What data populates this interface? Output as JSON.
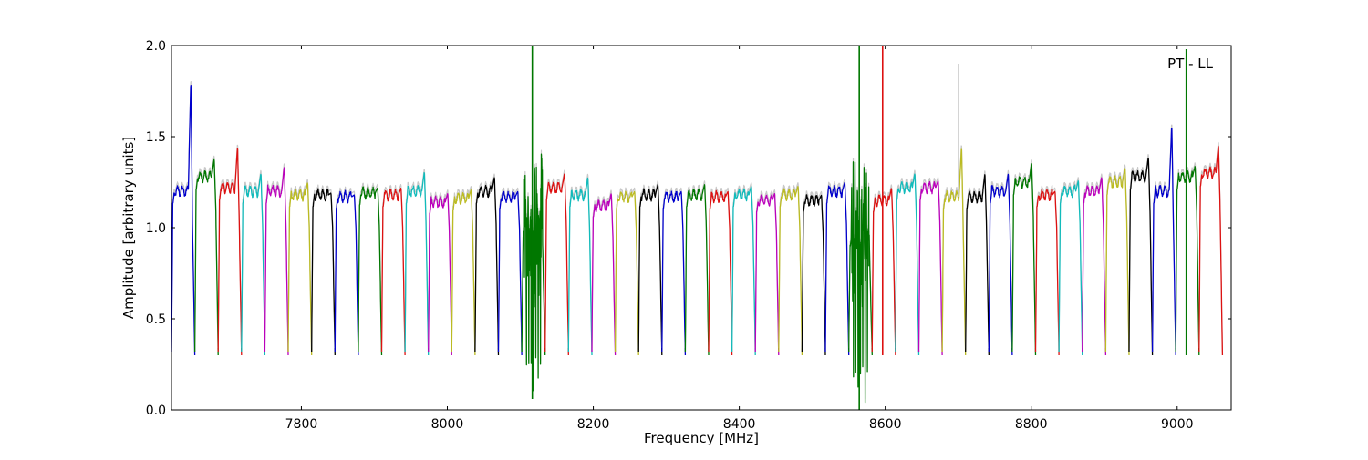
{
  "chart_data": {
    "type": "line",
    "title": "",
    "annotation": "PT - LL",
    "xlabel": "Frequency [MHz]",
    "ylabel": "Amplitude [arbitrary units]",
    "xlim": [
      7622,
      9074
    ],
    "ylim": [
      0.0,
      2.0
    ],
    "xticks": [
      7800,
      8000,
      8200,
      8400,
      8600,
      8800,
      9000
    ],
    "yticks": [
      0.0,
      0.5,
      1.0,
      1.5,
      2.0
    ],
    "xtick_labels": [
      "7800",
      "8000",
      "8200",
      "8400",
      "8600",
      "8800",
      "9000"
    ],
    "ytick_labels": [
      "0.0",
      "0.5",
      "1.0",
      "1.5",
      "2.0"
    ],
    "grid": false,
    "color_cycle": [
      "#0000cc",
      "#007700",
      "#dd1111",
      "#11bbbb",
      "#bb00bb",
      "#bbbb22",
      "#000000"
    ],
    "background_trace_color": "#c8c8c8",
    "channel_width_mhz": 32,
    "channels": [
      {
        "start": 7622,
        "level": 1.2,
        "edge_peak": 1.82
      },
      {
        "start": 7654,
        "level": 1.28,
        "edge_peak": 1.38
      },
      {
        "start": 7686,
        "level": 1.22,
        "edge_peak": 1.45
      },
      {
        "start": 7718,
        "level": 1.2,
        "edge_peak": 1.3
      },
      {
        "start": 7750,
        "level": 1.2,
        "edge_peak": 1.34
      },
      {
        "start": 7782,
        "level": 1.18,
        "edge_peak": 1.25
      },
      {
        "start": 7814,
        "level": 1.18,
        "edge_peak": 1.19
      },
      {
        "start": 7846,
        "level": 1.17,
        "edge_peak": 1.18
      },
      {
        "start": 7878,
        "level": 1.19,
        "edge_peak": 1.22
      },
      {
        "start": 7910,
        "level": 1.18,
        "edge_peak": 1.22
      },
      {
        "start": 7942,
        "level": 1.2,
        "edge_peak": 1.31
      },
      {
        "start": 7974,
        "level": 1.14,
        "edge_peak": 1.19
      },
      {
        "start": 8006,
        "level": 1.16,
        "edge_peak": 1.21
      },
      {
        "start": 8038,
        "level": 1.2,
        "edge_peak": 1.28
      },
      {
        "start": 8070,
        "level": 1.17,
        "edge_peak": 1.2
      },
      {
        "start": 8102,
        "level": 1.0,
        "edge_peak": 1.2,
        "noisy": true,
        "spike_max": 2.0,
        "spike_min": 0.06
      },
      {
        "start": 8134,
        "level": 1.22,
        "edge_peak": 1.3
      },
      {
        "start": 8166,
        "level": 1.18,
        "edge_peak": 1.28
      },
      {
        "start": 8198,
        "level": 1.12,
        "edge_peak": 1.19
      },
      {
        "start": 8230,
        "level": 1.17,
        "edge_peak": 1.2
      },
      {
        "start": 8262,
        "level": 1.18,
        "edge_peak": 1.24
      },
      {
        "start": 8294,
        "level": 1.17,
        "edge_peak": 1.2
      },
      {
        "start": 8326,
        "level": 1.18,
        "edge_peak": 1.24
      },
      {
        "start": 8358,
        "level": 1.17,
        "edge_peak": 1.2
      },
      {
        "start": 8390,
        "level": 1.18,
        "edge_peak": 1.23
      },
      {
        "start": 8422,
        "level": 1.15,
        "edge_peak": 1.19
      },
      {
        "start": 8454,
        "level": 1.18,
        "edge_peak": 1.23
      },
      {
        "start": 8486,
        "level": 1.15,
        "edge_peak": 1.18
      },
      {
        "start": 8518,
        "level": 1.2,
        "edge_peak": 1.25
      },
      {
        "start": 8550,
        "level": 0.95,
        "edge_peak": 1.22,
        "noisy": true,
        "spike_max": 2.0,
        "spike_min": 0.0
      },
      {
        "start": 8582,
        "level": 1.15,
        "edge_peak": 1.22,
        "spike_max": 2.0
      },
      {
        "start": 8614,
        "level": 1.22,
        "edge_peak": 1.3
      },
      {
        "start": 8646,
        "level": 1.22,
        "edge_peak": 1.26
      },
      {
        "start": 8678,
        "level": 1.17,
        "edge_peak": 1.45,
        "gray_spike": 1.9
      },
      {
        "start": 8710,
        "level": 1.17,
        "edge_peak": 1.3
      },
      {
        "start": 8742,
        "level": 1.2,
        "edge_peak": 1.3
      },
      {
        "start": 8774,
        "level": 1.25,
        "edge_peak": 1.36
      },
      {
        "start": 8806,
        "level": 1.18,
        "edge_peak": 1.2
      },
      {
        "start": 8838,
        "level": 1.2,
        "edge_peak": 1.26
      },
      {
        "start": 8870,
        "level": 1.2,
        "edge_peak": 1.28
      },
      {
        "start": 8902,
        "level": 1.25,
        "edge_peak": 1.33
      },
      {
        "start": 8934,
        "level": 1.28,
        "edge_peak": 1.39
      },
      {
        "start": 8966,
        "level": 1.2,
        "edge_peak": 1.57
      },
      {
        "start": 8998,
        "level": 1.28,
        "edge_peak": 1.34,
        "spike_max": 1.98
      },
      {
        "start": 9030,
        "level": 1.3,
        "edge_peak": 1.46
      }
    ]
  }
}
